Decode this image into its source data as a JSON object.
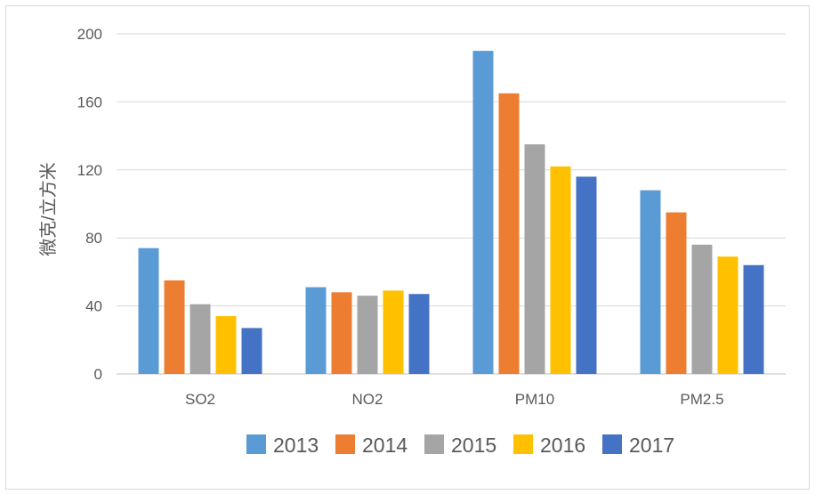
{
  "chart_data": {
    "type": "bar",
    "title": "",
    "xlabel": "",
    "ylabel": "微克/立方米",
    "categories": [
      "SO2",
      "NO2",
      "PM10",
      "PM2.5"
    ],
    "ylim": [
      0,
      200
    ],
    "yticks": [
      0,
      40,
      80,
      120,
      160,
      200
    ],
    "grid": true,
    "legend_position": "bottom",
    "series": [
      {
        "name": "2013",
        "color": "#5b9bd5",
        "values": [
          74,
          51,
          190,
          108
        ]
      },
      {
        "name": "2014",
        "color": "#ed7d31",
        "values": [
          55,
          48,
          165,
          95
        ]
      },
      {
        "name": "2015",
        "color": "#a5a5a5",
        "values": [
          41,
          46,
          135,
          76
        ]
      },
      {
        "name": "2016",
        "color": "#ffc000",
        "values": [
          34,
          49,
          122,
          69
        ]
      },
      {
        "name": "2017",
        "color": "#4472c4",
        "values": [
          27,
          47,
          116,
          64
        ]
      }
    ]
  }
}
